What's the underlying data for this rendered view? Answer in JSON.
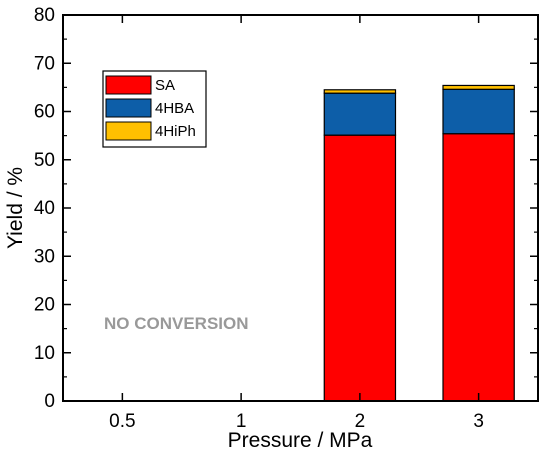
{
  "chart_data": {
    "type": "bar",
    "stacked": true,
    "categories": [
      "0.5",
      "1",
      "2",
      "3"
    ],
    "series": [
      {
        "name": "SA",
        "values": [
          0,
          0,
          55.1,
          55.4
        ],
        "color": "#ff0000"
      },
      {
        "name": "4HBA",
        "values": [
          0,
          0,
          8.7,
          9.2
        ],
        "color": "#0d5ea8"
      },
      {
        "name": "4HiPh",
        "values": [
          0,
          0,
          0.7,
          0.8
        ],
        "color": "#ffc000"
      }
    ],
    "xlabel": "Pressure / MPa",
    "ylabel": "Yield / %",
    "ylim": [
      0,
      80
    ],
    "yticks": [
      0,
      10,
      20,
      30,
      40,
      50,
      60,
      70,
      80
    ],
    "legend_position": "top-left",
    "grid": false,
    "annotations": [
      {
        "text": "NO CONVERSION",
        "color": "#999999"
      }
    ]
  }
}
